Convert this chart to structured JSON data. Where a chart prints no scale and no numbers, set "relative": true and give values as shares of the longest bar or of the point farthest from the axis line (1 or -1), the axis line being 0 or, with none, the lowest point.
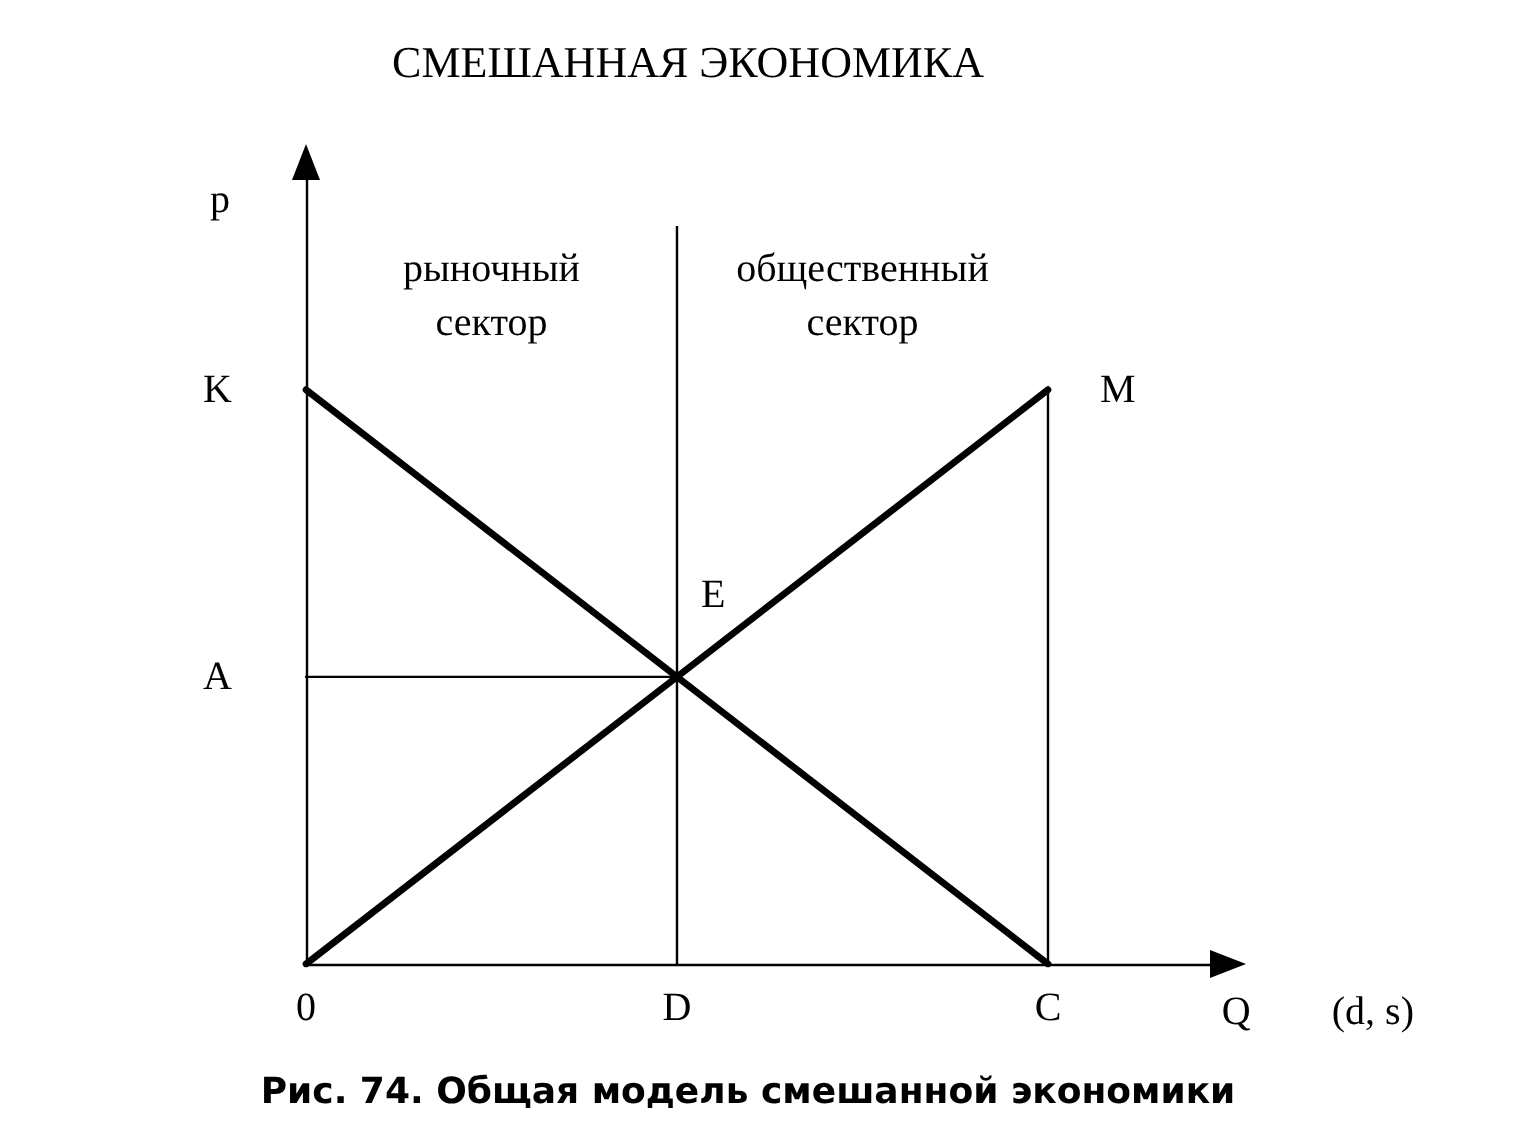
{
  "chart_data": {
    "type": "line",
    "title": "СМЕШАННАЯ ЭКОНОМИКА",
    "xlabel": "Q",
    "ylabel": "p",
    "categories": [
      "0",
      "D",
      "C"
    ],
    "relative": true,
    "marker": "none",
    "series": [
      {
        "color": "#000000",
        "values": [
          1,
          0.5,
          0
        ]
      },
      {
        "color": "#000000",
        "values": [
          0,
          0.5,
          1
        ]
      },
      {
        "color": "#000000",
        "x": [
          "0",
          "D"
        ],
        "values": [
          0.5,
          0.5
        ]
      },
      {
        "color": "#000000",
        "x": [
          "C",
          "C"
        ],
        "values": [
          0,
          1
        ]
      }
    ],
    "ref_lines": [
      {
        "axis": "x",
        "value": "D",
        "color": "#000000"
      }
    ],
    "annotations": [
      "рыночный\nсектор",
      "общественный\nсектор",
      {
        "text": "K",
        "x": "0",
        "y": 1
      },
      {
        "text": "A",
        "x": "0",
        "y": 0.5
      },
      {
        "text": "E",
        "x": "D",
        "y": 0.5
      },
      {
        "text": "M",
        "x": "C",
        "y": 1
      },
      "(d, s)",
      "Рис. 74. Общая модель смешанной экономики"
    ]
  }
}
